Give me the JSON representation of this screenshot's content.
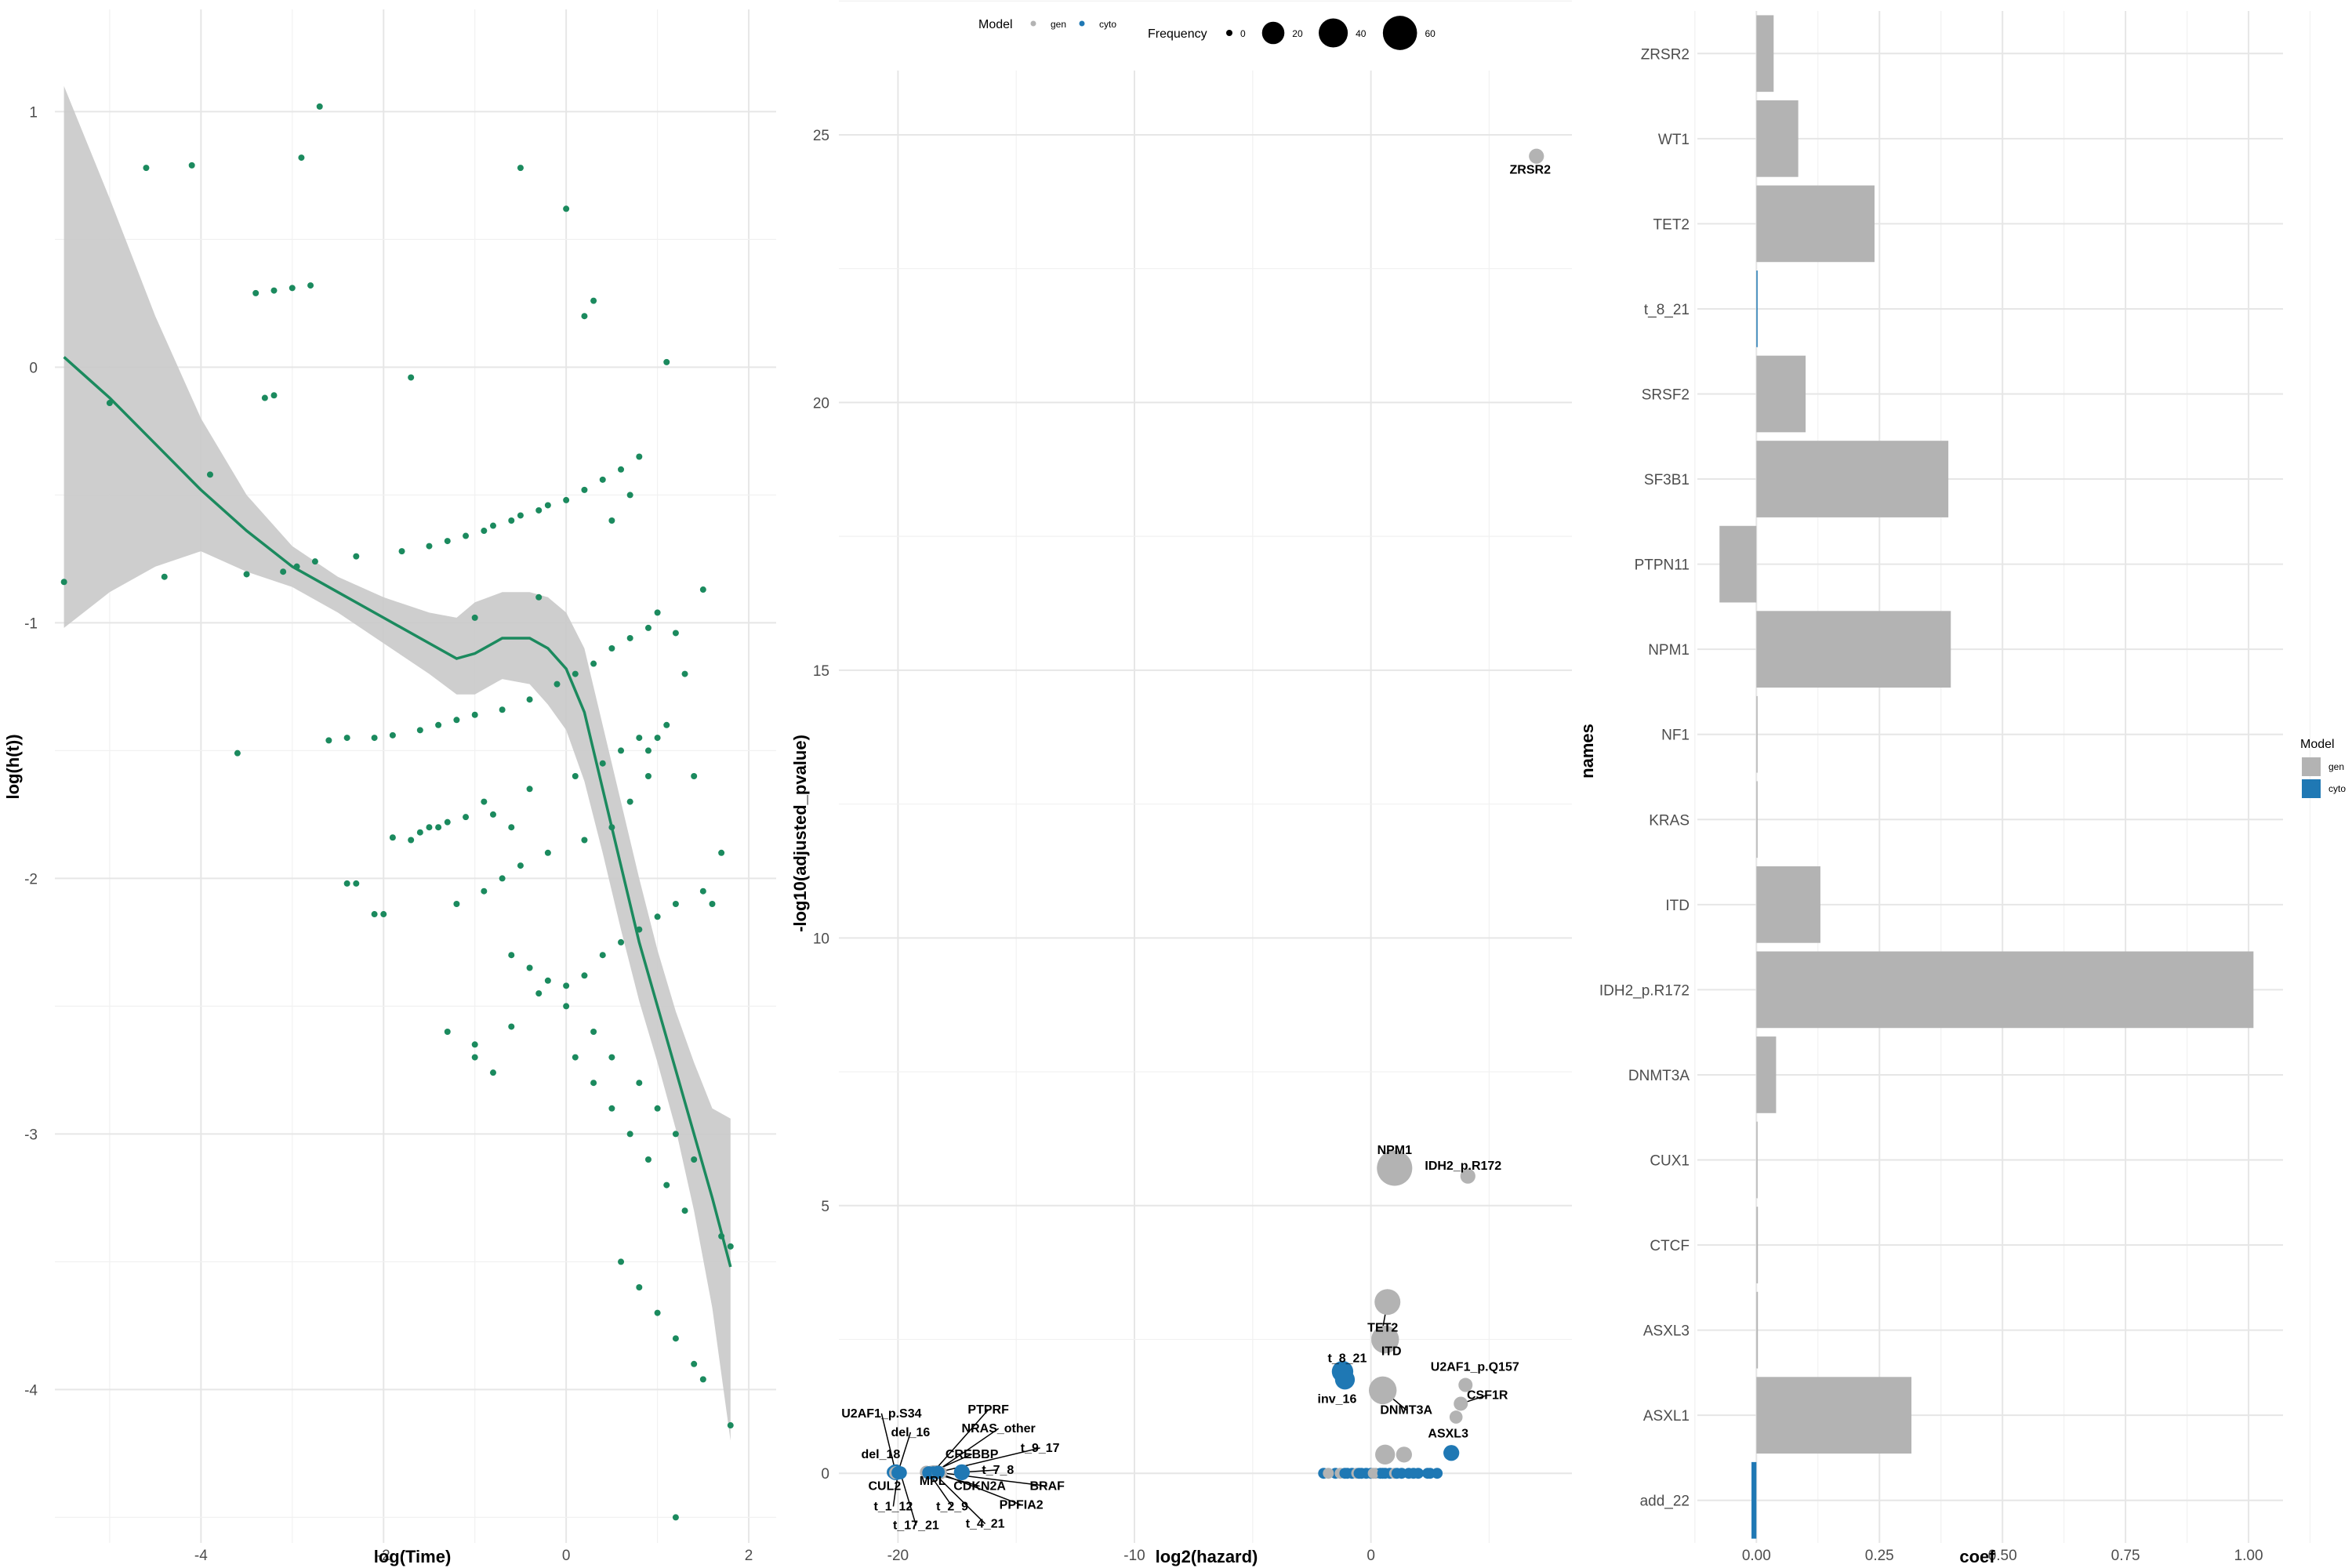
{
  "chart_data": [
    {
      "type": "scatter",
      "title": "",
      "xlabel": "log(Time)",
      "ylabel": "log(h(t))",
      "xlim": [
        -5.6,
        2.3
      ],
      "ylim": [
        -4.6,
        1.4
      ],
      "x_ticks": [
        -4,
        -2,
        0,
        2
      ],
      "y_ticks": [
        1,
        0,
        -1,
        -2,
        -3,
        -4
      ],
      "x_tick_labels": [
        "-4",
        "-2",
        "0",
        "2"
      ],
      "y_tick_labels": [
        "1",
        "0",
        "-1",
        "-2",
        "-3",
        "-4"
      ],
      "grid": true,
      "colors": {
        "points": "#1b8a5e",
        "smooth": "#1b8a5e",
        "ribbon": "#c9c9c9"
      },
      "series": [
        {
          "kind": "points",
          "x": [
            -5.5,
            -5.0,
            -4.6,
            -4.4,
            -4.1,
            -3.9,
            -3.6,
            -3.5,
            -3.4,
            -3.3,
            -3.2,
            -3.2,
            -3.1,
            -3.0,
            -2.95,
            -2.9,
            -2.8,
            -2.75,
            -2.7,
            -2.6,
            -2.4,
            -2.3,
            -2.1,
            -1.9,
            -1.8,
            -1.7,
            -1.6,
            -1.5,
            -1.4,
            -1.3,
            -1.2,
            -1.1,
            -1.0,
            -0.9,
            -0.8,
            -0.7,
            -0.6,
            -0.5,
            -0.4,
            -0.3,
            -0.2,
            -0.1,
            0.0,
            0.1,
            0.2,
            0.3,
            0.4,
            0.5,
            0.6,
            0.7,
            0.8,
            0.9,
            1.0,
            1.1,
            1.2,
            1.3,
            1.4,
            1.5,
            1.6,
            1.7,
            1.8,
            -0.5,
            0.0,
            0.3,
            -1.0,
            -0.8,
            -0.6,
            -0.3,
            0.2,
            0.5,
            0.7,
            0.9,
            1.0,
            -1.7,
            -1.5,
            -1.3,
            -1.1,
            -0.9,
            -0.4,
            0.1,
            0.4,
            0.6,
            0.8,
            1.1,
            -2.4,
            -2.1,
            -1.9,
            -1.6,
            -1.4,
            -1.2,
            -0.9,
            -0.7,
            -0.5,
            -0.2,
            0.2,
            0.5,
            0.7,
            0.9,
            -1.0,
            -0.8,
            -0.6,
            -0.4,
            -0.2,
            0.0,
            0.3,
            0.5,
            0.8,
            1.0,
            1.2,
            1.4,
            -0.6,
            -0.3,
            0.0,
            0.2,
            0.4,
            0.6,
            0.8,
            1.0,
            1.2,
            1.5,
            0.1,
            0.3,
            0.5,
            0.7,
            0.9,
            1.1,
            1.3,
            0.6,
            0.8,
            1.0,
            1.2,
            1.4,
            1.7,
            -2.3,
            -2.0,
            -1.3,
            -1.0,
            1.2,
            1.5,
            1.8
          ],
          "y": [
            -0.84,
            -0.14,
            0.78,
            -0.82,
            0.79,
            -0.42,
            -1.51,
            -0.81,
            0.29,
            -0.12,
            -0.11,
            0.3,
            -0.8,
            0.31,
            -0.78,
            0.82,
            0.32,
            -0.76,
            1.02,
            -1.46,
            -1.45,
            -0.74,
            -1.45,
            -1.44,
            -0.72,
            -0.04,
            -1.42,
            -0.7,
            -1.4,
            -0.68,
            -1.38,
            -0.66,
            -1.36,
            -0.64,
            -0.62,
            -1.34,
            -0.6,
            -0.58,
            -1.3,
            -0.56,
            -0.54,
            -1.24,
            -0.52,
            -1.2,
            -0.48,
            -1.16,
            -0.44,
            -1.1,
            -0.4,
            -1.06,
            -0.35,
            -1.02,
            -0.96,
            0.02,
            -1.04,
            -1.2,
            -1.6,
            -0.87,
            -2.1,
            -1.9,
            -4.14,
            0.78,
            0.62,
            0.26,
            -0.98,
            -1.75,
            -1.8,
            -0.9,
            0.2,
            -0.6,
            -0.5,
            -1.5,
            -1.45,
            -1.85,
            -1.8,
            -1.78,
            -1.76,
            -1.7,
            -1.65,
            -1.6,
            -1.55,
            -1.5,
            -1.45,
            -1.4,
            -2.02,
            -2.14,
            -1.84,
            -1.82,
            -1.8,
            -2.1,
            -2.05,
            -2.0,
            -1.95,
            -1.9,
            -1.85,
            -1.8,
            -1.7,
            -1.6,
            -2.65,
            -2.76,
            -2.3,
            -2.35,
            -2.4,
            -2.5,
            -2.6,
            -2.7,
            -2.8,
            -2.9,
            -3.0,
            -3.1,
            -2.58,
            -2.45,
            -2.42,
            -2.38,
            -2.3,
            -2.25,
            -2.2,
            -2.15,
            -2.1,
            -2.05,
            -2.7,
            -2.8,
            -2.9,
            -3.0,
            -3.1,
            -3.2,
            -3.3,
            -3.5,
            -3.6,
            -3.7,
            -3.8,
            -3.9,
            -3.4,
            -2.02,
            -2.14,
            -2.6,
            -2.7,
            -4.5,
            -3.96,
            -3.44
          ]
        },
        {
          "kind": "smooth",
          "x": [
            -5.5,
            -5.0,
            -4.5,
            -4.0,
            -3.5,
            -3.0,
            -2.5,
            -2.0,
            -1.5,
            -1.2,
            -1.0,
            -0.7,
            -0.4,
            -0.2,
            0.0,
            0.2,
            0.4,
            0.6,
            0.8,
            1.0,
            1.2,
            1.4,
            1.6,
            1.8
          ],
          "y": [
            0.04,
            -0.12,
            -0.3,
            -0.48,
            -0.64,
            -0.78,
            -0.88,
            -0.98,
            -1.08,
            -1.14,
            -1.12,
            -1.06,
            -1.06,
            -1.1,
            -1.18,
            -1.35,
            -1.65,
            -1.95,
            -2.25,
            -2.5,
            -2.75,
            -3.0,
            -3.25,
            -3.52
          ],
          "lower": [
            -1.02,
            -0.88,
            -0.78,
            -0.72,
            -0.8,
            -0.86,
            -0.96,
            -1.08,
            -1.2,
            -1.28,
            -1.28,
            -1.22,
            -1.24,
            -1.32,
            -1.42,
            -1.62,
            -1.9,
            -2.2,
            -2.48,
            -2.72,
            -2.98,
            -3.3,
            -3.68,
            -4.2
          ],
          "upper": [
            1.1,
            0.66,
            0.2,
            -0.2,
            -0.5,
            -0.7,
            -0.82,
            -0.9,
            -0.96,
            -0.98,
            -0.92,
            -0.88,
            -0.88,
            -0.9,
            -0.96,
            -1.1,
            -1.4,
            -1.7,
            -2.0,
            -2.28,
            -2.52,
            -2.72,
            -2.9,
            -2.94
          ]
        }
      ]
    },
    {
      "type": "scatter",
      "title": "",
      "xlabel": "log2(hazard)",
      "ylabel": "-log10(adjusted_pvalue)",
      "xlim": [
        -22.5,
        8.5
      ],
      "ylim": [
        -1.3,
        26.2
      ],
      "x_ticks": [
        -20,
        -10,
        0
      ],
      "y_ticks": [
        0,
        5,
        10,
        15,
        20,
        25
      ],
      "x_tick_labels": [
        "-20",
        "-10",
        "0"
      ],
      "y_tick_labels": [
        "0",
        "5",
        "10",
        "15",
        "20",
        "25"
      ],
      "grid": true,
      "legend": {
        "placement": "top",
        "model_title": "Model",
        "model_entries": [
          {
            "label": "gen",
            "color": "#b3b3b3"
          },
          {
            "label": "cyto",
            "color": "#1f78b4"
          }
        ],
        "frequency_title": "Frequency",
        "frequency_entries": [
          {
            "label": "0",
            "value": 0
          },
          {
            "label": "20",
            "value": 20
          },
          {
            "label": "40",
            "value": 40
          },
          {
            "label": "60",
            "value": 60
          }
        ]
      },
      "points": [
        {
          "label": "ZRSR2",
          "x": 7.0,
          "y": 24.6,
          "model": "gen",
          "freq": 5
        },
        {
          "label": "NPM1",
          "x": 1.0,
          "y": 5.7,
          "model": "gen",
          "freq": 55
        },
        {
          "label": "IDH2_p.R172",
          "x": 4.1,
          "y": 5.55,
          "model": "gen",
          "freq": 5
        },
        {
          "label": "TET2",
          "x": 0.7,
          "y": 3.2,
          "model": "gen",
          "freq": 25
        },
        {
          "label": "ITD",
          "x": 0.6,
          "y": 2.5,
          "model": "gen",
          "freq": 30
        },
        {
          "label": "t_8_21",
          "x": -1.2,
          "y": 1.9,
          "model": "cyto",
          "freq": 15
        },
        {
          "label": "inv_16",
          "x": -1.1,
          "y": 1.75,
          "model": "cyto",
          "freq": 12
        },
        {
          "label": "DNMT3A",
          "x": 0.5,
          "y": 1.55,
          "model": "gen",
          "freq": 30
        },
        {
          "label": "U2AF1_p.Q157",
          "x": 4.0,
          "y": 1.65,
          "model": "gen",
          "freq": 4
        },
        {
          "label": "CSF1R",
          "x": 3.8,
          "y": 1.3,
          "model": "gen",
          "freq": 4
        },
        {
          "label": "ASXL3",
          "x": 3.6,
          "y": 1.05,
          "model": "gen",
          "freq": 3
        },
        {
          "label": "",
          "x": 0.6,
          "y": 0.35,
          "model": "gen",
          "freq": 12
        },
        {
          "label": "",
          "x": 1.4,
          "y": 0.35,
          "model": "gen",
          "freq": 6
        },
        {
          "label": "",
          "x": 3.4,
          "y": 0.38,
          "model": "cyto",
          "freq": 6
        },
        {
          "label": "U2AF1_p.S34",
          "x": -20.1,
          "y": 0.02,
          "model": "cyto",
          "freq": 6
        },
        {
          "label": "del_16",
          "x": -20.0,
          "y": 0.02,
          "model": "cyto",
          "freq": 3
        },
        {
          "label": "del_18",
          "x": -20.2,
          "y": 0.02,
          "model": "cyto",
          "freq": 3
        },
        {
          "label": "CUL2",
          "x": -20.1,
          "y": 0.01,
          "model": "gen",
          "freq": 3
        },
        {
          "label": "t_1_12",
          "x": -20.0,
          "y": 0.01,
          "model": "cyto",
          "freq": 3
        },
        {
          "label": "t_17_21",
          "x": -19.9,
          "y": 0.01,
          "model": "cyto",
          "freq": 3
        },
        {
          "label": "PTPRF",
          "x": -18.5,
          "y": 0.03,
          "model": "gen",
          "freq": 3
        },
        {
          "label": "NRAS_other",
          "x": -18.4,
          "y": 0.03,
          "model": "gen",
          "freq": 3
        },
        {
          "label": "CREBBP",
          "x": -18.6,
          "y": 0.02,
          "model": "gen",
          "freq": 3
        },
        {
          "label": "MPL",
          "x": -18.8,
          "y": 0.02,
          "model": "gen",
          "freq": 3
        },
        {
          "label": "CDKN2A",
          "x": -18.6,
          "y": 0.01,
          "model": "gen",
          "freq": 3
        },
        {
          "label": "t_2_9",
          "x": -18.7,
          "y": 0.01,
          "model": "cyto",
          "freq": 3
        },
        {
          "label": "t_4_21",
          "x": -18.5,
          "y": 0.01,
          "model": "cyto",
          "freq": 3
        },
        {
          "label": "PPFIA2",
          "x": -18.3,
          "y": 0.01,
          "model": "gen",
          "freq": 3
        },
        {
          "label": "BRAF",
          "x": -18.2,
          "y": 0.01,
          "model": "gen",
          "freq": 3
        },
        {
          "label": "t_7_8",
          "x": -17.3,
          "y": 0.02,
          "model": "cyto",
          "freq": 6
        },
        {
          "label": "t_9_17",
          "x": -18.3,
          "y": 0.02,
          "model": "cyto",
          "freq": 3
        }
      ],
      "cluster": {
        "x": [
          -2.0,
          -1.5,
          -1.3,
          -1.0,
          -0.8,
          -0.6,
          -0.4,
          -0.2,
          0.0,
          0.2,
          0.4,
          0.6,
          0.8,
          1.0,
          1.3,
          1.6,
          2.0,
          2.4,
          2.8,
          -1.8,
          -1.1,
          -0.5,
          0.1,
          0.5,
          1.1,
          1.8,
          2.5
        ],
        "y": [
          0,
          0,
          0,
          0,
          0,
          0,
          0,
          0,
          0,
          0,
          0,
          0,
          0,
          0,
          0,
          0,
          0,
          0,
          0,
          0,
          0,
          0,
          0,
          0,
          0,
          0,
          0
        ],
        "model": [
          "cyto",
          "cyto",
          "gen",
          "cyto",
          "cyto",
          "gen",
          "cyto",
          "cyto",
          "cyto",
          "gen",
          "cyto",
          "cyto",
          "cyto",
          "gen",
          "cyto",
          "cyto",
          "cyto",
          "cyto",
          "cyto",
          "gen",
          "cyto",
          "cyto",
          "gen",
          "cyto",
          "cyto",
          "cyto",
          "cyto"
        ]
      }
    },
    {
      "type": "bar",
      "orientation": "horizontal",
      "title": "",
      "xlabel": "coef",
      "ylabel": "names",
      "xlim": [
        -0.12,
        1.07
      ],
      "x_ticks": [
        0.0,
        0.25,
        0.5,
        0.75,
        1.0
      ],
      "x_tick_labels": [
        "0.00",
        "0.25",
        "0.50",
        "0.75",
        "1.00"
      ],
      "grid": true,
      "categories": [
        "ZRSR2",
        "WT1",
        "TET2",
        "t_8_21",
        "SRSF2",
        "SF3B1",
        "PTPN11",
        "NPM1",
        "NF1",
        "KRAS",
        "ITD",
        "IDH2_p.R172",
        "DNMT3A",
        "CUX1",
        "CTCF",
        "ASXL3",
        "ASXL1",
        "add_22"
      ],
      "values": [
        0.035,
        0.085,
        0.24,
        0.0,
        0.1,
        0.39,
        -0.075,
        0.395,
        0.0,
        0.0,
        0.13,
        1.01,
        0.04,
        0.0,
        0.003,
        0.003,
        0.315,
        -0.01
      ],
      "models": [
        "gen",
        "gen",
        "gen",
        "cyto",
        "gen",
        "gen",
        "gen",
        "gen",
        "gen",
        "gen",
        "gen",
        "gen",
        "gen",
        "gen",
        "gen",
        "gen",
        "gen",
        "cyto"
      ],
      "legend": {
        "placement": "right",
        "title": "Model",
        "entries": [
          {
            "label": "gen",
            "color": "#b3b3b3"
          },
          {
            "label": "cyto",
            "color": "#1f78b4"
          }
        ]
      }
    }
  ]
}
